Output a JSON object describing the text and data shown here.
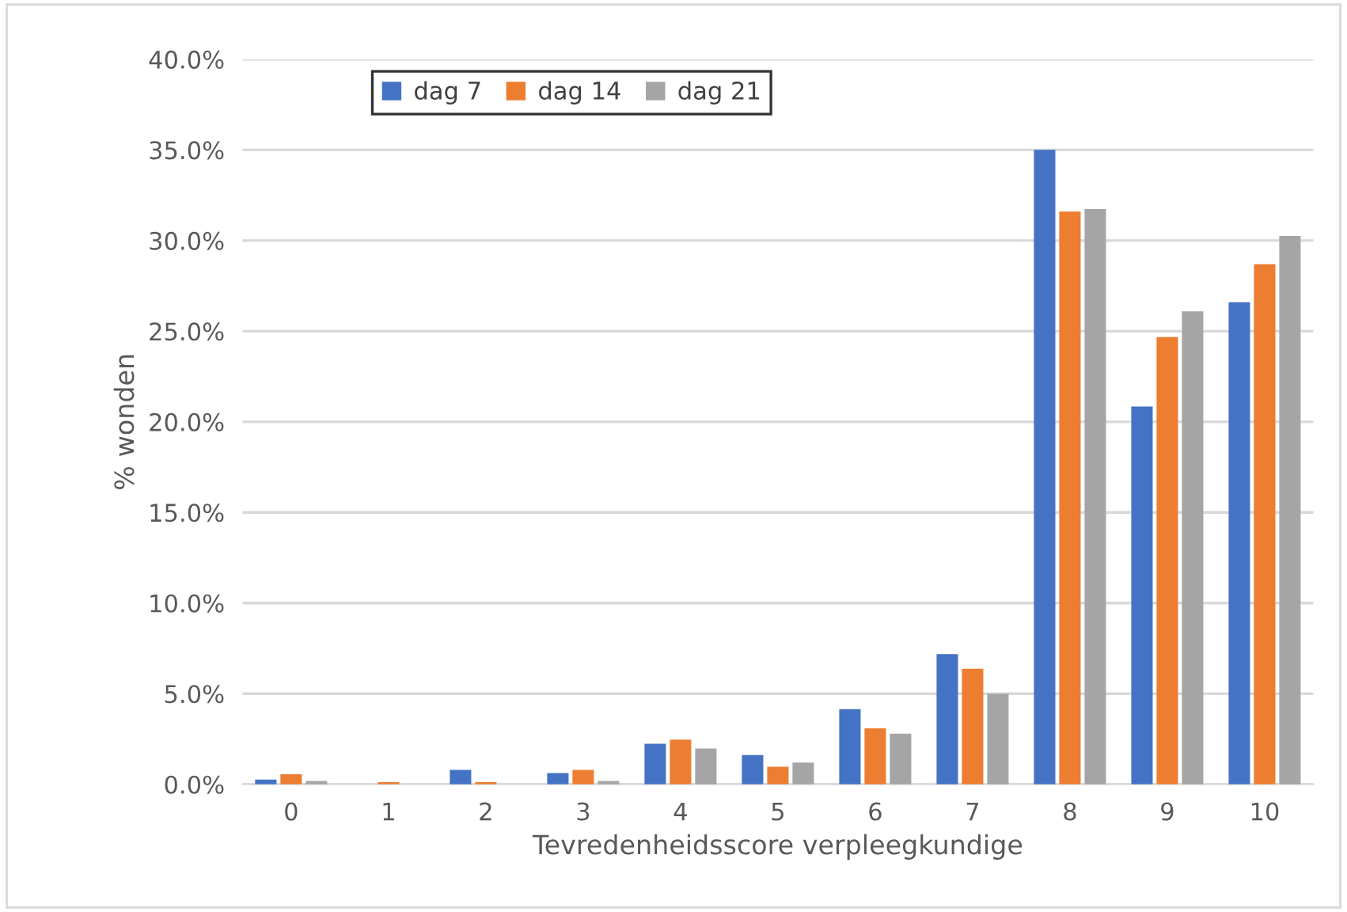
{
  "chart_data": {
    "type": "bar",
    "xlabel": "Tevredenheidsscore verpleegkundige",
    "ylabel": "% wonden",
    "categories": [
      "0",
      "1",
      "2",
      "3",
      "4",
      "5",
      "6",
      "7",
      "8",
      "9",
      "10"
    ],
    "series": [
      {
        "name": "dag 7",
        "color": "#4472c4",
        "values": [
          0.26,
          0,
          0.8,
          0.62,
          2.24,
          1.62,
          4.15,
          7.18,
          35.0,
          20.84,
          26.6
        ]
      },
      {
        "name": "dag 14",
        "color": "#ed7d31",
        "values": [
          0.56,
          0.12,
          0.12,
          0.8,
          2.47,
          0.97,
          3.09,
          6.37,
          31.6,
          24.68,
          28.69
        ]
      },
      {
        "name": "dag 21",
        "color": "#a5a5a5",
        "values": [
          0.18,
          0,
          0,
          0.18,
          1.97,
          1.2,
          2.79,
          5.0,
          31.74,
          26.1,
          30.26
        ]
      }
    ],
    "ylim": [
      0,
      40
    ],
    "yticks": [
      {
        "value": 0,
        "label": "0.0%"
      },
      {
        "value": 5,
        "label": "5.0%"
      },
      {
        "value": 10,
        "label": "10.0%"
      },
      {
        "value": 15,
        "label": "15.0%"
      },
      {
        "value": 20,
        "label": "20.0%"
      },
      {
        "value": 25,
        "label": "25.0%"
      },
      {
        "value": 30,
        "label": "30.0%"
      },
      {
        "value": 35,
        "label": "35.0%"
      },
      {
        "value": 40,
        "label": "40.0%"
      }
    ],
    "grid": "y",
    "legend": "top left"
  }
}
